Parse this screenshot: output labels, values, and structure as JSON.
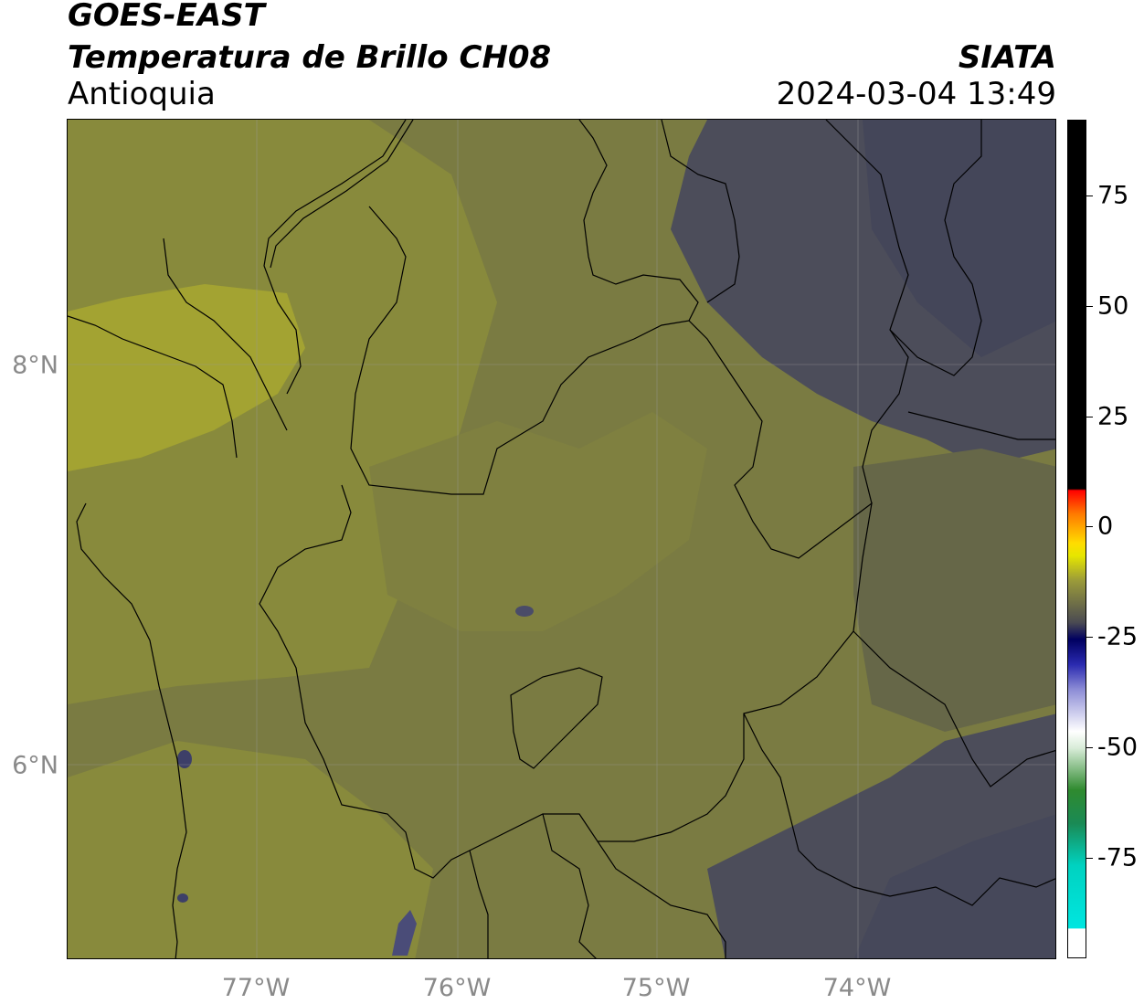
{
  "header": {
    "satellite": "GOES-EAST",
    "product": "Temperatura de Brillo CH08",
    "region": "Antioquia",
    "organization": "SIATA",
    "timestamp": "2024-03-04 13:49"
  },
  "map": {
    "lat_ticks": [
      "8°N",
      "6°N"
    ],
    "lon_ticks": [
      "77°W",
      "76°W",
      "75°W",
      "74°W"
    ],
    "extent": {
      "lon_min": -77.95,
      "lon_max": -73.05,
      "lat_min": 5.05,
      "lat_max": 9.25
    }
  },
  "colorbar": {
    "ticks": [
      "75",
      "50",
      "25",
      "0",
      "-25",
      "-50",
      "-75"
    ],
    "range": [
      -95,
      92
    ],
    "colors": {
      "warm": "#000000",
      "red": "#ff0000",
      "yellow": "#ffdc00",
      "blue": "#000060",
      "white": "#ffffff",
      "green": "#2f8a2f",
      "cyan": "#00e6e0"
    }
  },
  "colors": {
    "olive": "#7a7b42",
    "yellow_olive": "#a3a332",
    "slate": "#4a4b5a",
    "border": "#000000"
  }
}
